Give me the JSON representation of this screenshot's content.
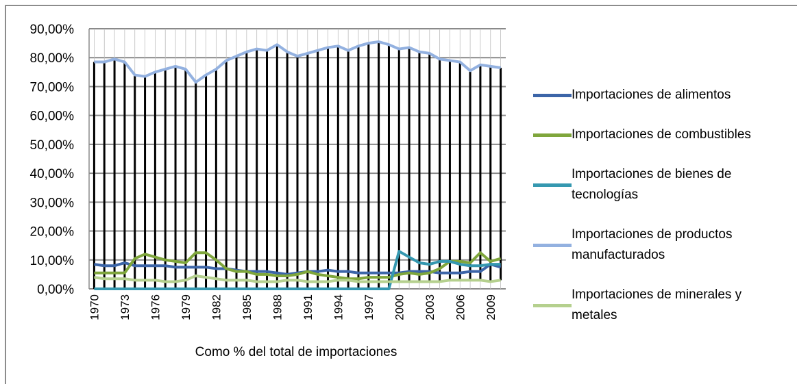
{
  "chart_data": {
    "type": "line",
    "x_label": "Como % del total de importaciones",
    "categories": [
      "1970",
      null,
      null,
      "1973",
      null,
      null,
      "1976",
      null,
      null,
      "1979",
      null,
      null,
      "1982",
      null,
      null,
      "1985",
      null,
      null,
      "1988",
      null,
      null,
      "1991",
      null,
      null,
      "1994",
      null,
      null,
      "1997",
      null,
      null,
      "2000",
      null,
      null,
      "2003",
      null,
      null,
      "2006",
      null,
      null,
      "2009",
      null
    ],
    "ylim": [
      0,
      90
    ],
    "yticks": [
      {
        "value": 0,
        "label": "0,00%"
      },
      {
        "value": 10,
        "label": "10,00%"
      },
      {
        "value": 20,
        "label": "20,00%"
      },
      {
        "value": 30,
        "label": "30,00%"
      },
      {
        "value": 40,
        "label": "40,00%"
      },
      {
        "value": 50,
        "label": "50,00%"
      },
      {
        "value": 60,
        "label": "60,00%"
      },
      {
        "value": 70,
        "label": "70,00%"
      },
      {
        "value": 80,
        "label": "80,00%"
      },
      {
        "value": 90,
        "label": "90,00%"
      }
    ],
    "grid": true,
    "high_low_lines": true,
    "legend": "right",
    "series": [
      {
        "name": "Importaciones de alimentos",
        "color": "#3c65a8",
        "values": [
          8.5,
          8,
          8,
          9,
          8,
          8,
          8,
          8,
          7.5,
          7.5,
          7.5,
          7.5,
          7,
          7,
          6.5,
          6,
          6,
          6,
          5.5,
          5,
          5.5,
          6,
          6,
          6.5,
          6,
          6,
          5.5,
          5.5,
          5.5,
          5.5,
          5.5,
          6,
          6,
          6,
          5.5,
          5.5,
          5.5,
          6,
          6,
          8.5,
          7.5
        ]
      },
      {
        "name": "Importaciones de combustibles",
        "color": "#7fa63c",
        "values": [
          5.5,
          5.5,
          5.5,
          5.5,
          10.5,
          12,
          11,
          10,
          9.5,
          9,
          12.5,
          12.5,
          10,
          7,
          6,
          6,
          5,
          5,
          4.5,
          4.5,
          5,
          6,
          5,
          4.5,
          4,
          3.5,
          3.5,
          4,
          4,
          4,
          5,
          5.5,
          5,
          5.5,
          7,
          9.5,
          9.5,
          9,
          12.5,
          9.5,
          10.5
        ]
      },
      {
        "name": "Importaciones de bienes de tecnologías",
        "color": "#3598b0",
        "values": [
          0,
          0,
          0,
          0,
          0,
          0,
          0,
          0,
          0,
          0,
          0,
          0,
          0,
          0,
          0,
          0,
          0,
          0,
          0,
          0,
          0,
          0,
          0,
          0,
          0,
          0,
          0,
          0,
          0,
          0,
          13,
          11,
          9,
          8.5,
          9.5,
          9.5,
          8.5,
          8,
          8,
          8.5,
          8.5
        ]
      },
      {
        "name": "Importaciones de productos manufacturados",
        "color": "#93b1e0",
        "values": [
          78.5,
          78.5,
          79.5,
          78.5,
          74,
          73.5,
          75,
          76,
          77,
          76,
          71.5,
          74,
          76,
          79,
          80.5,
          82,
          83,
          82.5,
          84.5,
          82,
          80.5,
          81.5,
          82.5,
          83.5,
          84,
          82.5,
          84,
          85,
          85.5,
          84.5,
          83,
          83.5,
          82,
          81.5,
          79.5,
          79,
          78.5,
          75.5,
          77.5,
          77,
          76.5
        ]
      },
      {
        "name": "Importaciones de minerales y metales",
        "color": "#b5d08e",
        "values": [
          4,
          3.5,
          3.5,
          3.5,
          3,
          3,
          3,
          2.5,
          2.5,
          3,
          4.5,
          4,
          3.5,
          3,
          3,
          3,
          2.5,
          2.5,
          2.5,
          3,
          3,
          2.5,
          2.5,
          2.5,
          3,
          3,
          2.5,
          2.5,
          2.5,
          2.5,
          2.5,
          2.5,
          2.5,
          2.5,
          2.5,
          3,
          3,
          3,
          3,
          2.5,
          3
        ]
      }
    ]
  }
}
